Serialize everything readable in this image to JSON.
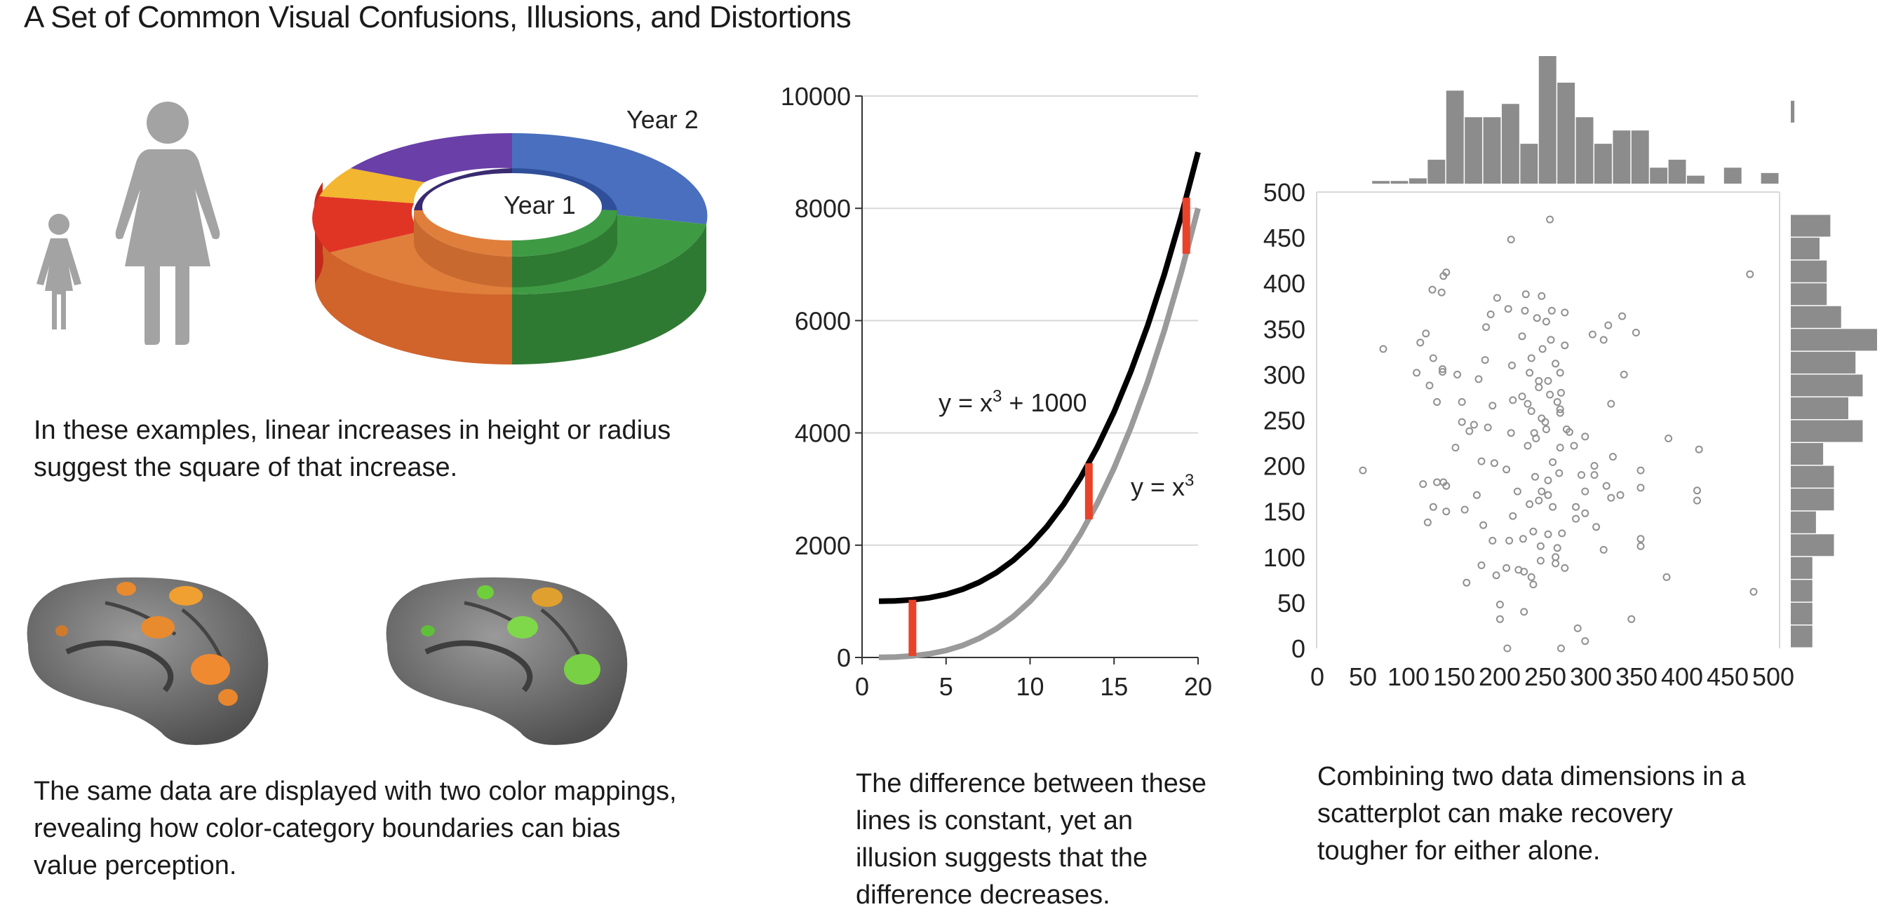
{
  "title": "A Set of Common Visual Confusions, Illusions, and Distortions",
  "panels": {
    "area": {
      "donut_labels": {
        "outer": "Year 2",
        "inner": "Year 1"
      },
      "caption": [
        "In these examples, linear increases in height or radius",
        "suggest the square of that increase."
      ]
    },
    "brains": {
      "caption": [
        "The same data are displayed with two color mappings,",
        "revealing how color-category boundaries can bias",
        "value perception."
      ]
    },
    "lines": {
      "caption": [
        "The difference between these",
        "lines is constant, yet an",
        "illusion suggests that the",
        "difference decreases."
      ]
    },
    "scatter": {
      "caption": [
        "Combining two data dimensions in a",
        "scatterplot can make recovery",
        "tougher for either alone."
      ]
    }
  },
  "colors": {
    "blue": "#4a6fbe",
    "green": "#3f9a44",
    "orange": "#e07f3c",
    "red": "#e03525",
    "yellow": "#f2b630",
    "purple": "#6a3fa8",
    "figure_gray": "#a3a3a3",
    "curve_black": "#000000",
    "curve_gray": "#9a9a9a",
    "highlight_red": "#e8432a",
    "hist_gray": "#8c8c8c",
    "point_gray": "#909090"
  },
  "chart_data": [
    {
      "type": "line",
      "title": "",
      "xlabel": "",
      "ylabel": "",
      "xlim": [
        0,
        20
      ],
      "ylim": [
        0,
        10000
      ],
      "xticks": [
        0,
        5,
        10,
        15,
        20
      ],
      "yticks": [
        0,
        2000,
        4000,
        6000,
        8000,
        10000
      ],
      "grid": true,
      "x": [
        1,
        2,
        3,
        4,
        5,
        6,
        7,
        8,
        9,
        10,
        11,
        12,
        13,
        14,
        15,
        16,
        17,
        18,
        19,
        20
      ],
      "series": [
        {
          "name": "y = x³ + 1000",
          "label": "y = x",
          "label_sup": "3",
          "label_tail": " + 1000",
          "values": [
            1001,
            1008,
            1027,
            1064,
            1125,
            1216,
            1343,
            1512,
            1729,
            2000,
            2331,
            2728,
            3197,
            3744,
            4375,
            5096,
            5913,
            6832,
            7859,
            9000
          ]
        },
        {
          "name": "y = x³",
          "label": "y = x",
          "label_sup": "3",
          "label_tail": "",
          "values": [
            1,
            8,
            27,
            64,
            125,
            216,
            343,
            512,
            729,
            1000,
            1331,
            1728,
            2197,
            2744,
            3375,
            4096,
            4913,
            5832,
            6859,
            8000
          ]
        }
      ],
      "difference_markers_x": [
        3,
        13.5,
        19.3
      ]
    },
    {
      "type": "scatter",
      "title": "",
      "xlabel": "",
      "ylabel": "",
      "xlim": [
        0,
        500
      ],
      "ylim": [
        0,
        500
      ],
      "xticks": [
        0,
        50,
        100,
        150,
        200,
        250,
        300,
        350,
        400,
        450,
        500
      ],
      "yticks": [
        0,
        50,
        100,
        150,
        200,
        250,
        300,
        350,
        400,
        450,
        500
      ],
      "grid": false,
      "points": [
        [
          252,
          470
        ],
        [
          210,
          448
        ],
        [
          468,
          410
        ],
        [
          140,
          412
        ],
        [
          137,
          408
        ],
        [
          125,
          393
        ],
        [
          135,
          390
        ],
        [
          195,
          384
        ],
        [
          226,
          388
        ],
        [
          243,
          386
        ],
        [
          207,
          372
        ],
        [
          225,
          370
        ],
        [
          188,
          366
        ],
        [
          254,
          370
        ],
        [
          268,
          368
        ],
        [
          330,
          364
        ],
        [
          238,
          362
        ],
        [
          248,
          358
        ],
        [
          183,
          352
        ],
        [
          315,
          354
        ],
        [
          345,
          346
        ],
        [
          298,
          344
        ],
        [
          118,
          345
        ],
        [
          222,
          342
        ],
        [
          310,
          338
        ],
        [
          253,
          338
        ],
        [
          268,
          332
        ],
        [
          112,
          335
        ],
        [
          72,
          328
        ],
        [
          244,
          328
        ],
        [
          232,
          318
        ],
        [
          126,
          318
        ],
        [
          182,
          316
        ],
        [
          258,
          312
        ],
        [
          211,
          310
        ],
        [
          136,
          306
        ],
        [
          136,
          303
        ],
        [
          230,
          302
        ],
        [
          263,
          302
        ],
        [
          152,
          300
        ],
        [
          108,
          302
        ],
        [
          332,
          300
        ],
        [
          175,
          295
        ],
        [
          240,
          293
        ],
        [
          250,
          293
        ],
        [
          122,
          288
        ],
        [
          240,
          286
        ],
        [
          264,
          280
        ],
        [
          252,
          278
        ],
        [
          222,
          276
        ],
        [
          212,
          272
        ],
        [
          130,
          270
        ],
        [
          260,
          270
        ],
        [
          228,
          268
        ],
        [
          190,
          266
        ],
        [
          157,
          270
        ],
        [
          263,
          262
        ],
        [
          263,
          258
        ],
        [
          318,
          268
        ],
        [
          232,
          260
        ],
        [
          243,
          252
        ],
        [
          247,
          248
        ],
        [
          157,
          248
        ],
        [
          170,
          245
        ],
        [
          248,
          240
        ],
        [
          270,
          240
        ],
        [
          165,
          238
        ],
        [
          185,
          242
        ],
        [
          210,
          236
        ],
        [
          273,
          237
        ],
        [
          235,
          236
        ],
        [
          237,
          230
        ],
        [
          290,
          232
        ],
        [
          380,
          230
        ],
        [
          228,
          222
        ],
        [
          263,
          220
        ],
        [
          278,
          222
        ],
        [
          150,
          220
        ],
        [
          413,
          218
        ],
        [
          320,
          210
        ],
        [
          192,
          203
        ],
        [
          178,
          205
        ],
        [
          255,
          204
        ],
        [
          300,
          200
        ],
        [
          50,
          195
        ],
        [
          350,
          195
        ],
        [
          262,
          192
        ],
        [
          286,
          190
        ],
        [
          236,
          188
        ],
        [
          205,
          196
        ],
        [
          300,
          190
        ],
        [
          130,
          182
        ],
        [
          250,
          184
        ],
        [
          137,
          182
        ],
        [
          140,
          178
        ],
        [
          115,
          180
        ],
        [
          313,
          178
        ],
        [
          350,
          176
        ],
        [
          217,
          172
        ],
        [
          290,
          172
        ],
        [
          243,
          172
        ],
        [
          411,
          173
        ],
        [
          250,
          168
        ],
        [
          173,
          168
        ],
        [
          328,
          168
        ],
        [
          318,
          165
        ],
        [
          240,
          162
        ],
        [
          230,
          158
        ],
        [
          126,
          155
        ],
        [
          255,
          155
        ],
        [
          280,
          155
        ],
        [
          140,
          150
        ],
        [
          160,
          152
        ],
        [
          411,
          162
        ],
        [
          212,
          145
        ],
        [
          280,
          142
        ],
        [
          290,
          148
        ],
        [
          120,
          138
        ],
        [
          302,
          133
        ],
        [
          180,
          135
        ],
        [
          234,
          128
        ],
        [
          265,
          126
        ],
        [
          223,
          120
        ],
        [
          250,
          125
        ],
        [
          190,
          118
        ],
        [
          208,
          118
        ],
        [
          350,
          120
        ],
        [
          350,
          112
        ],
        [
          310,
          108
        ],
        [
          242,
          112
        ],
        [
          260,
          110
        ],
        [
          258,
          100
        ],
        [
          258,
          93
        ],
        [
          242,
          96
        ],
        [
          178,
          91
        ],
        [
          205,
          88
        ],
        [
          268,
          88
        ],
        [
          218,
          86
        ],
        [
          224,
          84
        ],
        [
          194,
          80
        ],
        [
          232,
          78
        ],
        [
          234,
          70
        ],
        [
          378,
          78
        ],
        [
          162,
          72
        ],
        [
          472,
          62
        ],
        [
          198,
          48
        ],
        [
          224,
          40
        ],
        [
          198,
          32
        ],
        [
          340,
          32
        ],
        [
          282,
          22
        ],
        [
          290,
          8
        ],
        [
          206,
          0
        ],
        [
          264,
          0
        ]
      ],
      "marginal_x_hist": {
        "bins_start": 60,
        "bin_width": 20,
        "counts": [
          1,
          1,
          2,
          9,
          35,
          25,
          25,
          30,
          15,
          48,
          38,
          25,
          15,
          20,
          20,
          6,
          9,
          3,
          0,
          6,
          0,
          4
        ]
      },
      "marginal_y_hist": {
        "bins_start": 0,
        "bin_width": 25,
        "counts": [
          6,
          6,
          6,
          6,
          12,
          7,
          12,
          12,
          9,
          20,
          16,
          20,
          18,
          24,
          14,
          10,
          10,
          8,
          11,
          0,
          0,
          0,
          0,
          1,
          0
        ]
      }
    }
  ]
}
